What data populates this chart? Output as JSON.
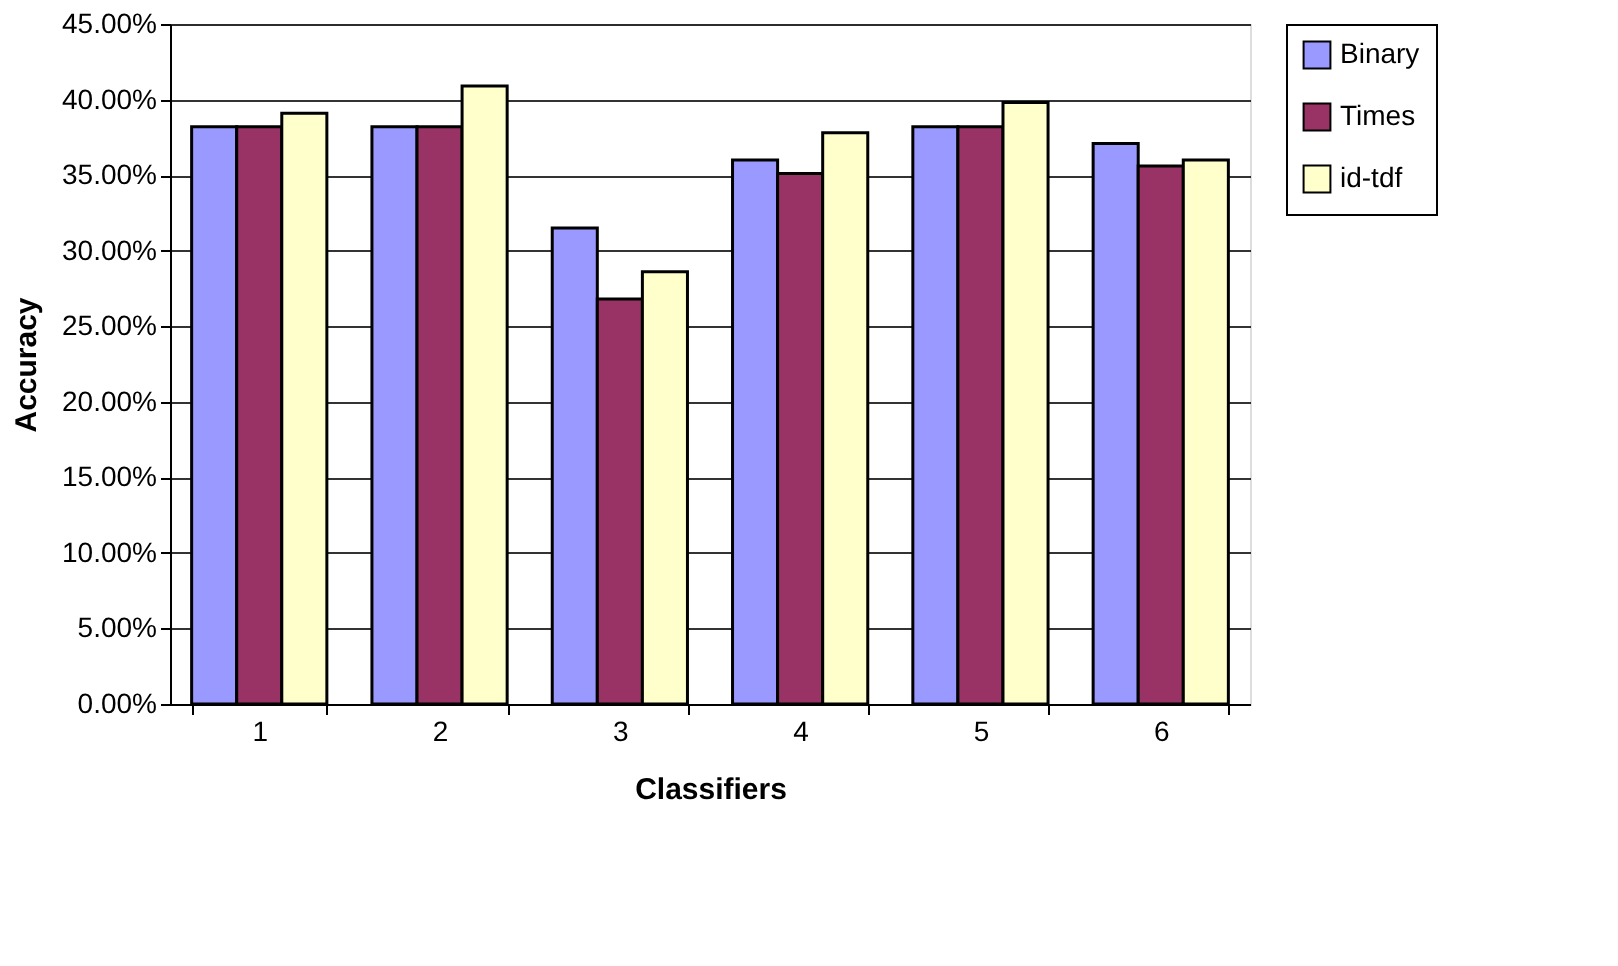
{
  "chart_data": {
    "type": "bar",
    "xlabel": "Classifiers",
    "ylabel": "Accuracy",
    "categories": [
      "1",
      "2",
      "3",
      "4",
      "5",
      "6"
    ],
    "series": [
      {
        "name": "Binary",
        "color": "#9999ff",
        "values": [
          38.2,
          38.2,
          31.5,
          36.0,
          38.2,
          37.1
        ]
      },
      {
        "name": "Times",
        "color": "#993366",
        "values": [
          38.2,
          38.2,
          26.8,
          35.1,
          38.2,
          35.6
        ]
      },
      {
        "name": "id-tdf",
        "color": "#ffffcc",
        "values": [
          39.1,
          40.9,
          28.6,
          37.8,
          39.8,
          36.0
        ]
      }
    ],
    "ylim": [
      0,
      45
    ],
    "yticks": [
      {
        "value": 0,
        "label": "0.00%"
      },
      {
        "value": 5,
        "label": "5.00%"
      },
      {
        "value": 10,
        "label": "10.00%"
      },
      {
        "value": 15,
        "label": "15.00%"
      },
      {
        "value": 20,
        "label": "20.00%"
      },
      {
        "value": 25,
        "label": "25.00%"
      },
      {
        "value": 30,
        "label": "30.00%"
      },
      {
        "value": 35,
        "label": "35.00%"
      },
      {
        "value": 40,
        "label": "40.00%"
      },
      {
        "value": 45,
        "label": "45.00%"
      }
    ],
    "grid": "y",
    "legend": "right"
  }
}
